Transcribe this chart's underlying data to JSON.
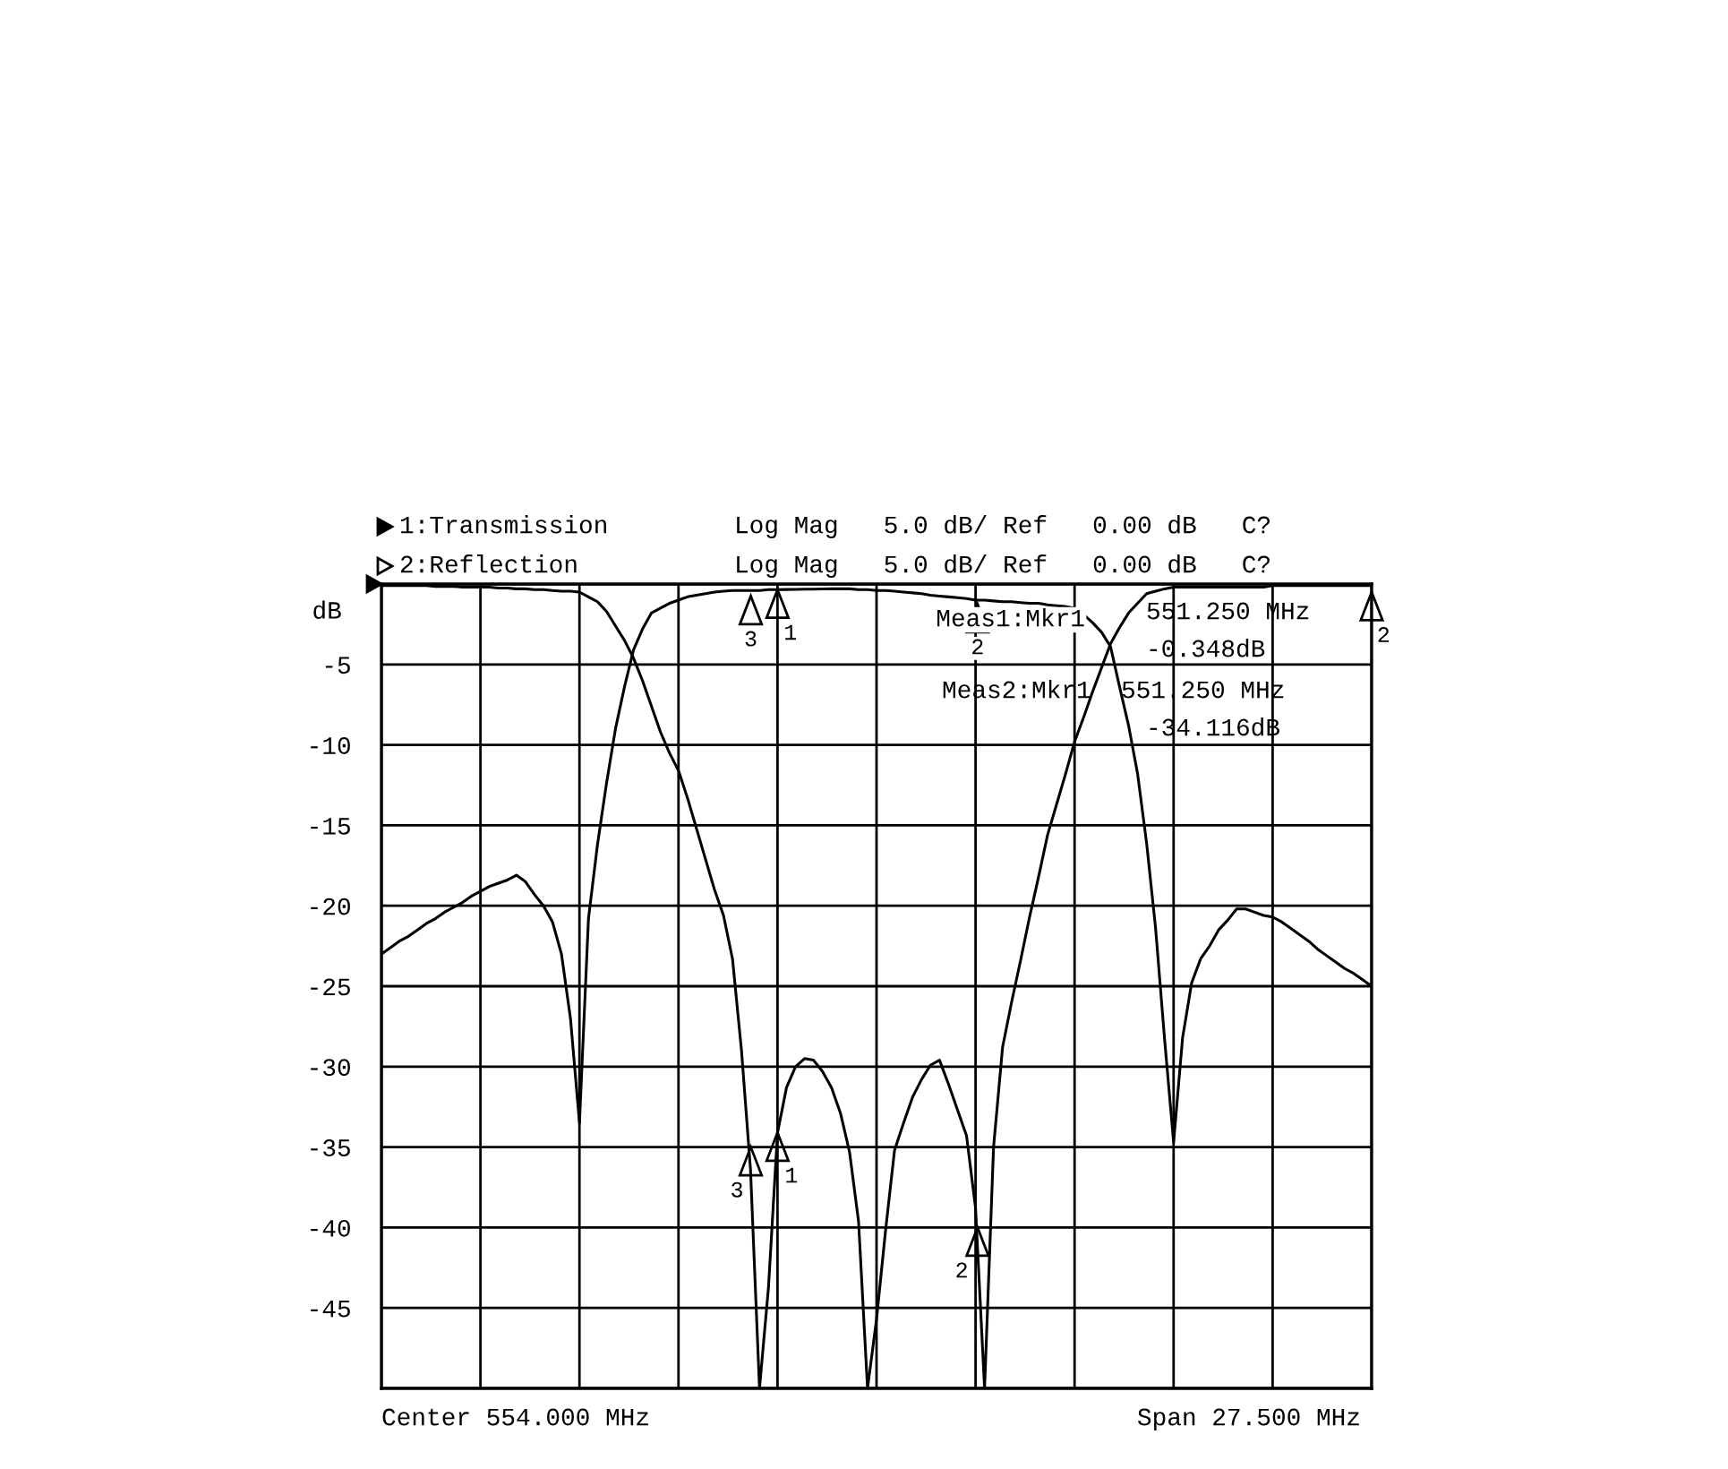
{
  "chart_data": {
    "type": "line",
    "ylabel": "dB",
    "categories": [
      null,
      null,
      null,
      null,
      null,
      null,
      null,
      null,
      null,
      null,
      null,
      null,
      null,
      null,
      null,
      null,
      null,
      null,
      null,
      null,
      null,
      null,
      null,
      null,
      null,
      null,
      null,
      null,
      null,
      null,
      null,
      null,
      null,
      null,
      null,
      null,
      null,
      null,
      null,
      null,
      null,
      null,
      null,
      null,
      null,
      null,
      null,
      null,
      null,
      null,
      null,
      null,
      null,
      null,
      null,
      null,
      null,
      null,
      null,
      null,
      null,
      null,
      null,
      null,
      null,
      null,
      null,
      null,
      null,
      null,
      null,
      null,
      null,
      null,
      null,
      null,
      null,
      null,
      null,
      null,
      null,
      null,
      null,
      null,
      null,
      null,
      null,
      null,
      null,
      null,
      null,
      null,
      null,
      null,
      null,
      null,
      null,
      null,
      null,
      null,
      null,
      null,
      null,
      null,
      null,
      null,
      null,
      null,
      null,
      null,
      null
    ],
    "ylim": [
      -50,
      0
    ],
    "yticks": [
      {
        "value": 0,
        "label": null
      },
      -5,
      -10,
      -15,
      -20,
      -25,
      -30,
      -35,
      -40,
      -45,
      {
        "value": -50,
        "label": null
      }
    ],
    "tick_labels": "y",
    "grid": true,
    "line_style": "solid",
    "legend": "top left",
    "series": [
      {
        "name": "1:Transmission",
        "color": "#000000",
        "values": [
          -23.0,
          -22.6,
          -22.2,
          -21.9,
          -21.5,
          -21.1,
          -20.8,
          -20.4,
          -20.1,
          -19.8,
          -19.4,
          -19.1,
          -18.8,
          -18.6,
          -18.4,
          -18.1,
          -18.5,
          -19.3,
          -20.0,
          -21.0,
          -23.0,
          -27.0,
          -33.5,
          -20.8,
          -16.2,
          -12.4,
          -9.0,
          -6.4,
          -4.1,
          -2.8,
          -1.8,
          -1.5,
          -1.2,
          -1.0,
          -0.8,
          -0.7,
          -0.6,
          -0.5,
          -0.45,
          -0.4,
          -0.4,
          -0.4,
          -0.4,
          -0.35,
          -0.348,
          -0.34,
          -0.33,
          -0.32,
          -0.32,
          -0.31,
          -0.3,
          -0.3,
          -0.3,
          -0.35,
          -0.35,
          -0.4,
          -0.4,
          -0.45,
          -0.5,
          -0.55,
          -0.6,
          -0.7,
          -0.75,
          -0.8,
          -0.85,
          -0.9,
          -1.0,
          -1.0,
          -1.05,
          -1.1,
          -1.1,
          -1.15,
          -1.2,
          -1.2,
          -1.3,
          -1.35,
          -1.4,
          -1.5,
          -1.9,
          -2.4,
          -3.0,
          -3.9,
          -6.4,
          -8.8,
          -11.8,
          -16.1,
          -21.4,
          -28.3,
          -34.7,
          -28.2,
          -24.8,
          -23.3,
          -22.5,
          -21.5,
          -20.9,
          -20.2,
          -20.2,
          -20.4,
          -20.6,
          -20.7,
          -21.0,
          -21.4,
          -21.8,
          -22.2,
          -22.7,
          -23.1,
          -23.5,
          -23.9,
          -24.2,
          -24.6,
          -25.0
        ]
      },
      {
        "name": "2:Reflection",
        "color": "#000000",
        "values": [
          -0.1,
          -0.1,
          -0.1,
          -0.1,
          -0.1,
          -0.1,
          -0.15,
          -0.15,
          -0.15,
          -0.2,
          -0.2,
          -0.2,
          -0.2,
          -0.25,
          -0.25,
          -0.3,
          -0.3,
          -0.35,
          -0.35,
          -0.4,
          -0.45,
          -0.45,
          -0.5,
          -0.8,
          -1.1,
          -1.7,
          -2.6,
          -3.5,
          -4.6,
          -6.0,
          -7.6,
          -9.2,
          -10.5,
          -11.6,
          -13.3,
          -15.2,
          -17.1,
          -19.0,
          -20.6,
          -23.3,
          -29.0,
          -36.4,
          -50.0,
          -43.7,
          -34.116,
          -31.3,
          -30.0,
          -29.5,
          -29.6,
          -30.3,
          -31.3,
          -32.9,
          -35.3,
          -39.6,
          -50.0,
          -45.7,
          -40.2,
          -35.2,
          -33.5,
          -31.9,
          -30.8,
          -29.9,
          -29.6,
          -31.1,
          -32.7,
          -34.3,
          -38.8,
          -50.0,
          -35.0,
          -28.8,
          -26.0,
          -23.4,
          -20.7,
          -18.2,
          -15.6,
          -13.7,
          -11.8,
          -9.8,
          -8.3,
          -6.7,
          -5.2,
          -3.7,
          -2.7,
          -1.8,
          -1.2,
          -0.6,
          -0.45,
          -0.3,
          -0.2,
          -0.2,
          -0.2,
          -0.2,
          -0.2,
          -0.2,
          -0.2,
          -0.2,
          -0.2,
          -0.2,
          -0.2,
          -0.1,
          -0.1,
          -0.1,
          -0.1,
          -0.1,
          -0.1,
          -0.1,
          -0.1,
          -0.1,
          -0.1,
          -0.1,
          -0.1
        ]
      }
    ],
    "annotations": [
      "Log Mag   5.0 dB/ Ref   0.00 dB   C?",
      "Log Mag   5.0 dB/ Ref   0.00 dB   C?",
      "Meas1:Mkr1  551.250 MHz",
      "-0.348dB",
      "Meas2:Mkr1  551.250 MHz",
      "-34.116dB",
      "Center 554.000 MHz",
      "Span 27.500 MHz",
      "1",
      "2",
      "3",
      "1",
      "2",
      "3",
      "2"
    ]
  }
}
